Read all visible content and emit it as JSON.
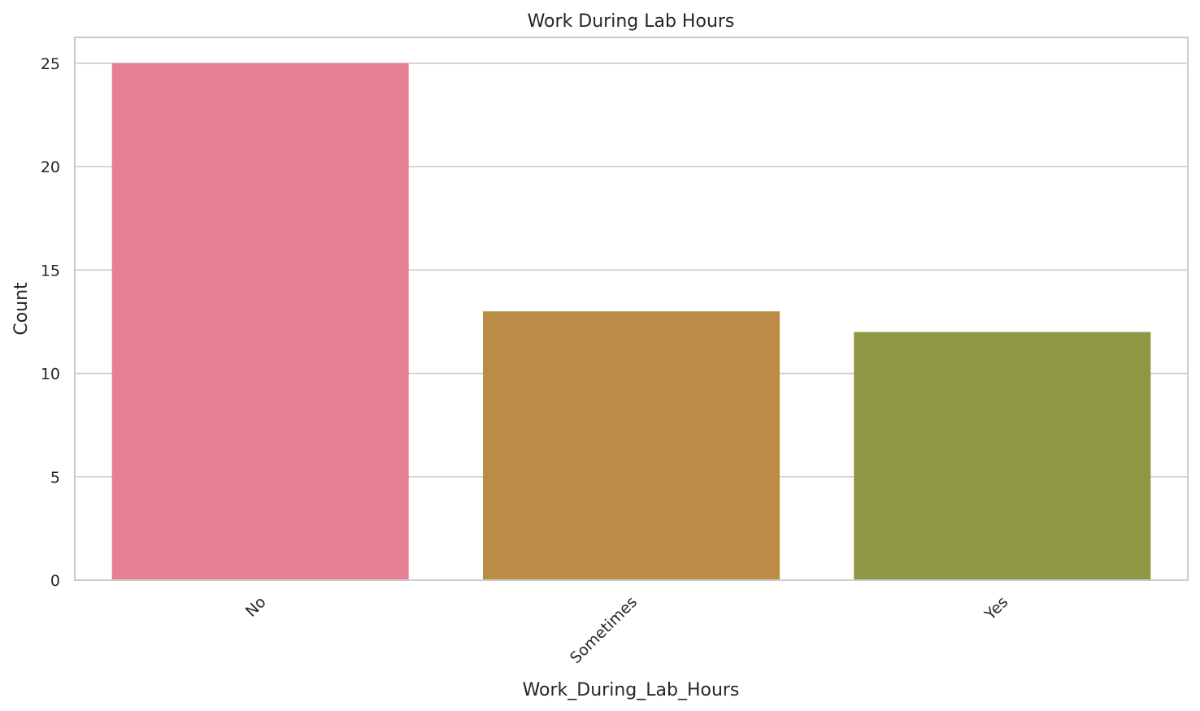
{
  "chart_data": {
    "type": "bar",
    "title": "Work During Lab Hours",
    "xlabel": "Work_During_Lab_Hours",
    "ylabel": "Count",
    "categories": [
      "No",
      "Sometimes",
      "Yes"
    ],
    "values": [
      25,
      13,
      12
    ],
    "colors": [
      "#e88093",
      "#bb8c45",
      "#8e9844"
    ],
    "ylim": [
      0,
      26.25
    ],
    "yticks": [
      0,
      5,
      10,
      15,
      20,
      25
    ],
    "grid": true,
    "xtick_rotation": 45
  }
}
